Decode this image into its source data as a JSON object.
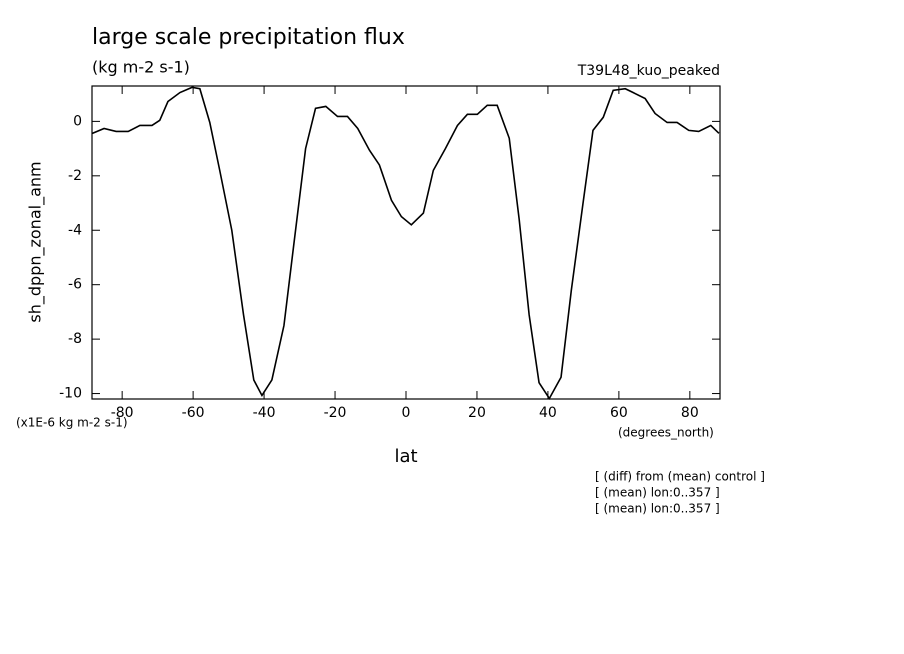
{
  "chart_data": {
    "type": "line",
    "title": "large scale precipitation flux",
    "subtitle": "(kg m-2 s-1)",
    "run_label": "T39L48_kuo_peaked",
    "y_label": "sh_dppn_zonal_anm",
    "y_scale_note": "(x1E-6 kg m-2 s-1)",
    "x_label": "lat",
    "x_units": "(degrees_north)",
    "notes": [
      "[ (diff) from (mean) control ]",
      "[ (mean) lon:0..357 ]",
      "[ (mean) lon:0..357 ]"
    ],
    "color": "#000000",
    "x": [
      -88.4,
      -85.1,
      -81.7,
      -78.3,
      -75.0,
      -71.6,
      -69.4,
      -67.1,
      -63.7,
      -60.3,
      -58.1,
      -55.3,
      -52.5,
      -49.1,
      -45.8,
      -42.9,
      -40.6,
      -37.8,
      -34.4,
      -31.6,
      -28.3,
      -25.5,
      -22.6,
      -19.3,
      -16.5,
      -13.6,
      -10.3,
      -7.5,
      -4.1,
      -1.3,
      1.5,
      4.9,
      7.7,
      11.1,
      14.5,
      17.3,
      20.1,
      22.9,
      25.7,
      29.1,
      31.9,
      34.7,
      37.5,
      40.4,
      43.7,
      46.6,
      49.9,
      52.7,
      55.6,
      58.4,
      61.8,
      64.0,
      67.4,
      70.2,
      73.6,
      76.4,
      79.7,
      82.5,
      85.9,
      88.2
    ],
    "values": [
      -0.44,
      -0.26,
      -0.37,
      -0.37,
      -0.15,
      -0.15,
      0.04,
      0.73,
      1.06,
      1.25,
      1.2,
      -0.04,
      -1.8,
      -4.0,
      -7.1,
      -9.5,
      -10.07,
      -9.5,
      -7.5,
      -4.5,
      -1.0,
      0.48,
      0.55,
      0.18,
      0.18,
      -0.26,
      -1.06,
      -1.6,
      -2.9,
      -3.5,
      -3.8,
      -3.37,
      -1.8,
      -1.0,
      -0.15,
      0.26,
      0.26,
      0.59,
      0.59,
      -0.62,
      -3.6,
      -7.1,
      -9.6,
      -10.18,
      -9.4,
      -6.2,
      -3.0,
      -0.33,
      0.15,
      1.14,
      1.2,
      1.06,
      0.84,
      0.29,
      -0.04,
      -0.04,
      -0.33,
      -0.37,
      -0.15,
      -0.44
    ],
    "xlim": [
      -88.5,
      88.5
    ],
    "xticks": [
      -80,
      -60,
      -40,
      -20,
      0,
      20,
      40,
      60,
      80
    ],
    "ylim": [
      -10.2,
      1.3
    ],
    "yticks": [
      -10,
      -8,
      -6,
      -4,
      -2,
      0
    ]
  }
}
